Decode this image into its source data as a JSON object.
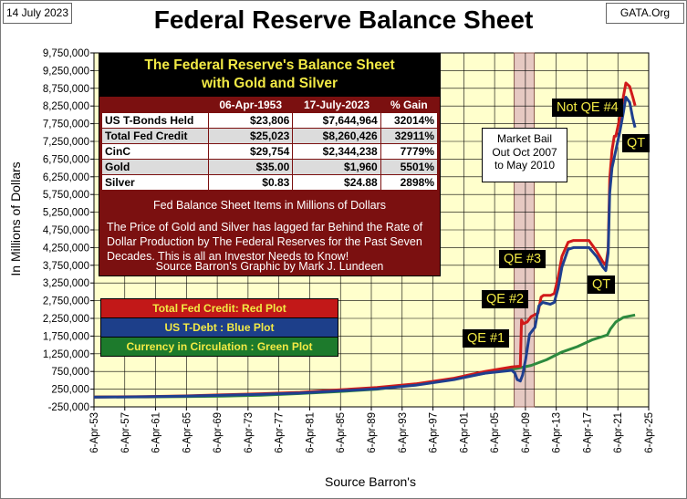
{
  "header": {
    "date": "14 July 2023",
    "source": "GATA.Org",
    "title": "Federal Reserve Balance Sheet"
  },
  "colors": {
    "plot_area": "#ffffcc",
    "fed_credit": "#d11a1a",
    "t_debt": "#1f3f8f",
    "currency": "#2d8a3e",
    "bail_band": "#e6c9c2",
    "gridline": "#000000"
  },
  "info_panel": {
    "title_line1": "The Federal Reserve's Balance Sheet",
    "title_line2": "with Gold and Silver",
    "columns": [
      "",
      "06-Apr-1953",
      "17-July-2023",
      "% Gain"
    ],
    "rows": [
      {
        "label": "US T-Bonds Held",
        "v1953": "$23,806",
        "v2023": "$7,644,964",
        "gain": "32014%"
      },
      {
        "label": "Total Fed Credit",
        "v1953": "$25,023",
        "v2023": "$8,260,426",
        "gain": "32911%"
      },
      {
        "label": "CinC",
        "v1953": "$29,754",
        "v2023": "$2,344,238",
        "gain": "7779%"
      },
      {
        "label": "Gold",
        "v1953": "$35.00",
        "v2023": "$1,960",
        "gain": "5501%"
      },
      {
        "label": "Silver",
        "v1953": "$0.83",
        "v2023": "$24.88",
        "gain": "2898%"
      }
    ],
    "units_note": "Fed Balance Sheet Items in Millions of Dollars",
    "body": "The Price of Gold and Silver has lagged far Behind the Rate of Dollar Production by The Federal Reserves for the Past Seven Decades.  This is all an Investor Needs to Know!",
    "credit": "Source Barron's   Graphic by Mark J. Lundeen"
  },
  "legend": {
    "red": "Total Fed Credit: Red Plot",
    "blue": "US T-Debt : Blue Plot",
    "green": "Currency in Circulation : Green Plot"
  },
  "annotations": {
    "bail_line1": "Market Bail",
    "bail_line2": "Out Oct 2007",
    "bail_line3": "to May 2010",
    "qe1": "QE #1",
    "qe2": "QE #2",
    "qe3": "QE #3",
    "not_qe4": "Not QE #4",
    "qt1": "QT",
    "qt2": "QT"
  },
  "chart_data": {
    "type": "line",
    "ylabel": "In  Millions  of  Dollars",
    "xlabel": "Source Barron's",
    "ylim": [
      -250000,
      9750000
    ],
    "y_ticks": [
      -250000,
      250000,
      750000,
      1250000,
      1750000,
      2250000,
      2750000,
      3250000,
      3750000,
      4250000,
      4750000,
      5250000,
      5750000,
      6250000,
      6750000,
      7250000,
      7750000,
      8250000,
      8750000,
      9250000,
      9750000
    ],
    "y_tick_labels": [
      "-250,000",
      "250,000",
      "750,000",
      "1,250,000",
      "1,750,000",
      "2,250,000",
      "2,750,000",
      "3,250,000",
      "3,750,000",
      "4,250,000",
      "4,750,000",
      "5,250,000",
      "5,750,000",
      "6,250,000",
      "6,750,000",
      "7,250,000",
      "7,750,000",
      "8,250,000",
      "8,750,000",
      "9,250,000",
      "9,750,000"
    ],
    "xlim": [
      1953.26,
      2025.26
    ],
    "x_ticks": [
      1953.26,
      1957.26,
      1961.26,
      1965.26,
      1969.26,
      1973.26,
      1977.26,
      1981.26,
      1985.26,
      1989.26,
      1993.26,
      1997.26,
      2001.26,
      2005.26,
      2009.26,
      2013.26,
      2017.26,
      2021.26,
      2025.26
    ],
    "x_tick_labels": [
      "6-Apr-53",
      "6-Apr-57",
      "6-Apr-61",
      "6-Apr-65",
      "6-Apr-69",
      "6-Apr-73",
      "6-Apr-77",
      "6-Apr-81",
      "6-Apr-85",
      "6-Apr-89",
      "6-Apr-93",
      "6-Apr-97",
      "6-Apr-01",
      "6-Apr-05",
      "6-Apr-09",
      "6-Apr-13",
      "6-Apr-17",
      "6-Apr-21",
      "6-Apr-25"
    ],
    "bail_band": [
      2007.8,
      2010.4
    ],
    "grid": true,
    "series": [
      {
        "name": "Total Fed Credit",
        "color": "#d11a1a",
        "x": [
          1953.26,
          1960,
          1965,
          1970,
          1975,
          1980,
          1985,
          1990,
          1995,
          2000,
          2004,
          2007.5,
          2008.6,
          2008.75,
          2009.0,
          2009.5,
          2010.0,
          2010.9,
          2011.3,
          2011.6,
          2012.5,
          2013.0,
          2013.5,
          2014.0,
          2014.8,
          2015.5,
          2016.5,
          2017.5,
          2018.5,
          2019.3,
          2019.7,
          2020.0,
          2020.2,
          2020.5,
          2020.8,
          2021.0,
          2021.5,
          2022.0,
          2022.3,
          2022.8,
          2023.2,
          2023.5
        ],
        "y": [
          25023,
          40000,
          60000,
          90000,
          120000,
          160000,
          230000,
          300000,
          400000,
          560000,
          750000,
          880000,
          900000,
          2200000,
          2100000,
          2150000,
          2300000,
          2400000,
          2850000,
          2900000,
          2900000,
          2950000,
          3400000,
          4000000,
          4400000,
          4450000,
          4450000,
          4450000,
          4150000,
          3850000,
          3750000,
          4200000,
          6200000,
          7000000,
          7400000,
          7400000,
          7900000,
          8550000,
          8900000,
          8800000,
          8500000,
          8260426
        ]
      },
      {
        "name": "US T-Debt",
        "color": "#1f3f8f",
        "x": [
          1953.26,
          1960,
          1965,
          1970,
          1975,
          1980,
          1985,
          1990,
          1995,
          2000,
          2004,
          2007.5,
          2007.9,
          2008.2,
          2008.6,
          2008.9,
          2009.3,
          2009.8,
          2010.5,
          2011.0,
          2011.5,
          2012.5,
          2013.0,
          2013.5,
          2014.0,
          2014.8,
          2015.5,
          2016.5,
          2017.5,
          2018.5,
          2019.3,
          2019.7,
          2020.0,
          2020.2,
          2020.5,
          2021.0,
          2021.5,
          2022.0,
          2022.3,
          2022.8,
          2023.2,
          2023.5
        ],
        "y": [
          23806,
          35000,
          55000,
          80000,
          105000,
          140000,
          200000,
          260000,
          360000,
          520000,
          700000,
          780000,
          700000,
          520000,
          480000,
          650000,
          1100000,
          1800000,
          2000000,
          2600000,
          2700000,
          2650000,
          2700000,
          3100000,
          3700000,
          4200000,
          4250000,
          4250000,
          4250000,
          4000000,
          3700000,
          3600000,
          4100000,
          5800000,
          6500000,
          7000000,
          7500000,
          8100000,
          8500000,
          8350000,
          7900000,
          7644964
        ]
      },
      {
        "name": "Currency in Circulation",
        "color": "#2d8a3e",
        "x": [
          1953.26,
          1960,
          1965,
          1970,
          1975,
          1980,
          1985,
          1990,
          1995,
          2000,
          2005,
          2008,
          2010,
          2012,
          2014,
          2016,
          2018,
          2019.9,
          2020.3,
          2021,
          2022,
          2023.5
        ],
        "y": [
          29754,
          32000,
          40000,
          55000,
          80000,
          125000,
          180000,
          250000,
          380000,
          550000,
          740000,
          830000,
          920000,
          1080000,
          1300000,
          1450000,
          1650000,
          1780000,
          1950000,
          2150000,
          2280000,
          2344238
        ]
      }
    ]
  }
}
